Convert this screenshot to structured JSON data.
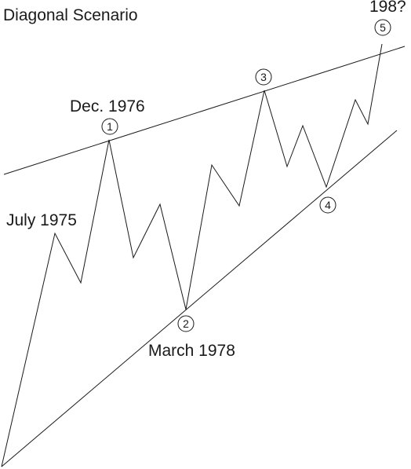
{
  "title": "Diagonal Scenario",
  "annotations": {
    "july_1975": "July 1975",
    "dec_1976": "Dec. 1976",
    "march_1978": "March 1978",
    "year_198": "198?"
  },
  "wave_labels": [
    "1",
    "2",
    "3",
    "4",
    "5"
  ],
  "colors": {
    "ink": "#1a1a1a",
    "background": "#ffffff"
  }
}
